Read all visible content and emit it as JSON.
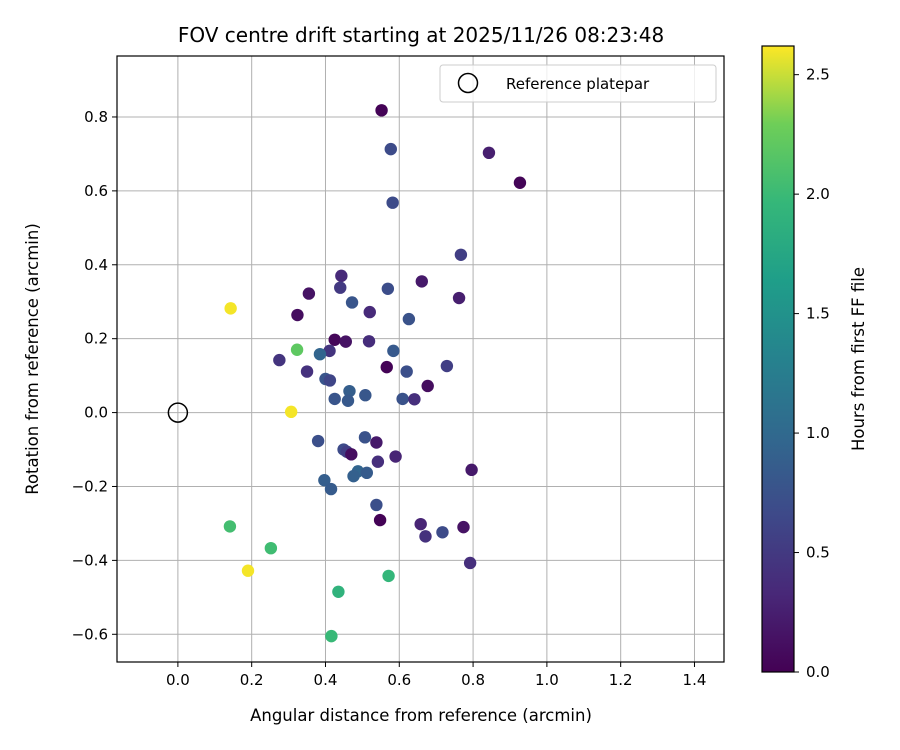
{
  "chart_data": {
    "type": "scatter",
    "title": "FOV centre drift starting at 2025/11/26 08:23:48",
    "xlabel": "Angular distance from reference (arcmin)",
    "ylabel": "Rotation from reference (arcmin)",
    "xlim": [
      -0.165,
      1.48
    ],
    "ylim": [
      -0.675,
      0.965
    ],
    "xticks": [
      0.0,
      0.2,
      0.4,
      0.6,
      0.8,
      1.0,
      1.2,
      1.4
    ],
    "xtick_labels": [
      "0.0",
      "0.2",
      "0.4",
      "0.6",
      "0.8",
      "1.0",
      "1.2",
      "1.4"
    ],
    "yticks": [
      -0.6,
      -0.4,
      -0.2,
      0.0,
      0.2,
      0.4,
      0.6,
      0.8
    ],
    "ytick_labels": [
      "−0.6",
      "−0.4",
      "−0.2",
      "0.0",
      "0.2",
      "0.4",
      "0.6",
      "0.8"
    ],
    "grid": true,
    "legend": {
      "label": "Reference platepar",
      "position": "top-right"
    },
    "reference_point": {
      "x": 0.0,
      "y": 0.0
    },
    "colorbar": {
      "label": "Hours from first FF file",
      "cmap": "viridis",
      "range": [
        0.0,
        2.62
      ],
      "ticks": [
        0.0,
        0.5,
        1.0,
        1.5,
        2.0,
        2.5
      ],
      "tick_labels": [
        "0.0",
        "0.5",
        "1.0",
        "1.5",
        "2.0",
        "2.5"
      ],
      "position": "right"
    },
    "points": [
      {
        "x": 0.552,
        "y": 0.818,
        "c": 0.02
      },
      {
        "x": 0.577,
        "y": 0.713,
        "c": 0.68
      },
      {
        "x": 0.843,
        "y": 0.703,
        "c": 0.25
      },
      {
        "x": 0.927,
        "y": 0.622,
        "c": 0.03
      },
      {
        "x": 0.582,
        "y": 0.568,
        "c": 0.68
      },
      {
        "x": 0.767,
        "y": 0.427,
        "c": 0.55
      },
      {
        "x": 0.443,
        "y": 0.37,
        "c": 0.35
      },
      {
        "x": 0.661,
        "y": 0.355,
        "c": 0.2
      },
      {
        "x": 0.44,
        "y": 0.338,
        "c": 0.5
      },
      {
        "x": 0.569,
        "y": 0.335,
        "c": 0.7
      },
      {
        "x": 0.355,
        "y": 0.322,
        "c": 0.15
      },
      {
        "x": 0.762,
        "y": 0.31,
        "c": 0.25
      },
      {
        "x": 0.472,
        "y": 0.298,
        "c": 0.78
      },
      {
        "x": 0.52,
        "y": 0.272,
        "c": 0.35
      },
      {
        "x": 0.324,
        "y": 0.264,
        "c": 0.1
      },
      {
        "x": 0.626,
        "y": 0.253,
        "c": 0.75
      },
      {
        "x": 0.425,
        "y": 0.197,
        "c": 0.05
      },
      {
        "x": 0.455,
        "y": 0.192,
        "c": 0.15
      },
      {
        "x": 0.518,
        "y": 0.193,
        "c": 0.38
      },
      {
        "x": 0.411,
        "y": 0.167,
        "c": 0.45
      },
      {
        "x": 0.584,
        "y": 0.167,
        "c": 0.82
      },
      {
        "x": 0.385,
        "y": 0.158,
        "c": 0.95
      },
      {
        "x": 0.275,
        "y": 0.142,
        "c": 0.45
      },
      {
        "x": 0.729,
        "y": 0.126,
        "c": 0.55
      },
      {
        "x": 0.566,
        "y": 0.123,
        "c": 0.02
      },
      {
        "x": 0.35,
        "y": 0.111,
        "c": 0.42
      },
      {
        "x": 0.62,
        "y": 0.111,
        "c": 0.72
      },
      {
        "x": 0.4,
        "y": 0.091,
        "c": 0.78
      },
      {
        "x": 0.412,
        "y": 0.087,
        "c": 0.62
      },
      {
        "x": 0.677,
        "y": 0.072,
        "c": 0.1
      },
      {
        "x": 0.465,
        "y": 0.058,
        "c": 0.88
      },
      {
        "x": 0.508,
        "y": 0.047,
        "c": 0.8
      },
      {
        "x": 0.425,
        "y": 0.037,
        "c": 0.78
      },
      {
        "x": 0.609,
        "y": 0.037,
        "c": 0.75
      },
      {
        "x": 0.641,
        "y": 0.036,
        "c": 0.4
      },
      {
        "x": 0.461,
        "y": 0.032,
        "c": 0.82
      },
      {
        "x": 0.507,
        "y": -0.067,
        "c": 0.75
      },
      {
        "x": 0.38,
        "y": -0.077,
        "c": 0.72
      },
      {
        "x": 0.538,
        "y": -0.081,
        "c": 0.2
      },
      {
        "x": 0.449,
        "y": -0.1,
        "c": 0.68
      },
      {
        "x": 0.458,
        "y": -0.106,
        "c": 0.55
      },
      {
        "x": 0.47,
        "y": -0.113,
        "c": 0.1
      },
      {
        "x": 0.59,
        "y": -0.119,
        "c": 0.3
      },
      {
        "x": 0.542,
        "y": -0.133,
        "c": 0.4
      },
      {
        "x": 0.796,
        "y": -0.155,
        "c": 0.2
      },
      {
        "x": 0.488,
        "y": -0.159,
        "c": 0.95
      },
      {
        "x": 0.512,
        "y": -0.163,
        "c": 0.85
      },
      {
        "x": 0.476,
        "y": -0.172,
        "c": 0.9
      },
      {
        "x": 0.397,
        "y": -0.183,
        "c": 0.88
      },
      {
        "x": 0.415,
        "y": -0.207,
        "c": 0.85
      },
      {
        "x": 0.538,
        "y": -0.25,
        "c": 0.72
      },
      {
        "x": 0.548,
        "y": -0.291,
        "c": 0.02
      },
      {
        "x": 0.658,
        "y": -0.302,
        "c": 0.3
      },
      {
        "x": 0.774,
        "y": -0.31,
        "c": 0.15
      },
      {
        "x": 0.717,
        "y": -0.324,
        "c": 0.68
      },
      {
        "x": 0.671,
        "y": -0.335,
        "c": 0.42
      },
      {
        "x": 0.792,
        "y": -0.407,
        "c": 0.4
      },
      {
        "x": 0.141,
        "y": -0.308,
        "c": 2.05
      },
      {
        "x": 0.252,
        "y": -0.367,
        "c": 2.03
      },
      {
        "x": 0.19,
        "y": -0.428,
        "c": 2.6
      },
      {
        "x": 0.571,
        "y": -0.442,
        "c": 1.95
      },
      {
        "x": 0.435,
        "y": -0.485,
        "c": 1.9
      },
      {
        "x": 0.416,
        "y": -0.605,
        "c": 1.98
      },
      {
        "x": 0.143,
        "y": 0.282,
        "c": 2.6
      },
      {
        "x": 0.323,
        "y": 0.17,
        "c": 2.2
      },
      {
        "x": 0.307,
        "y": 0.002,
        "c": 2.6
      }
    ]
  }
}
